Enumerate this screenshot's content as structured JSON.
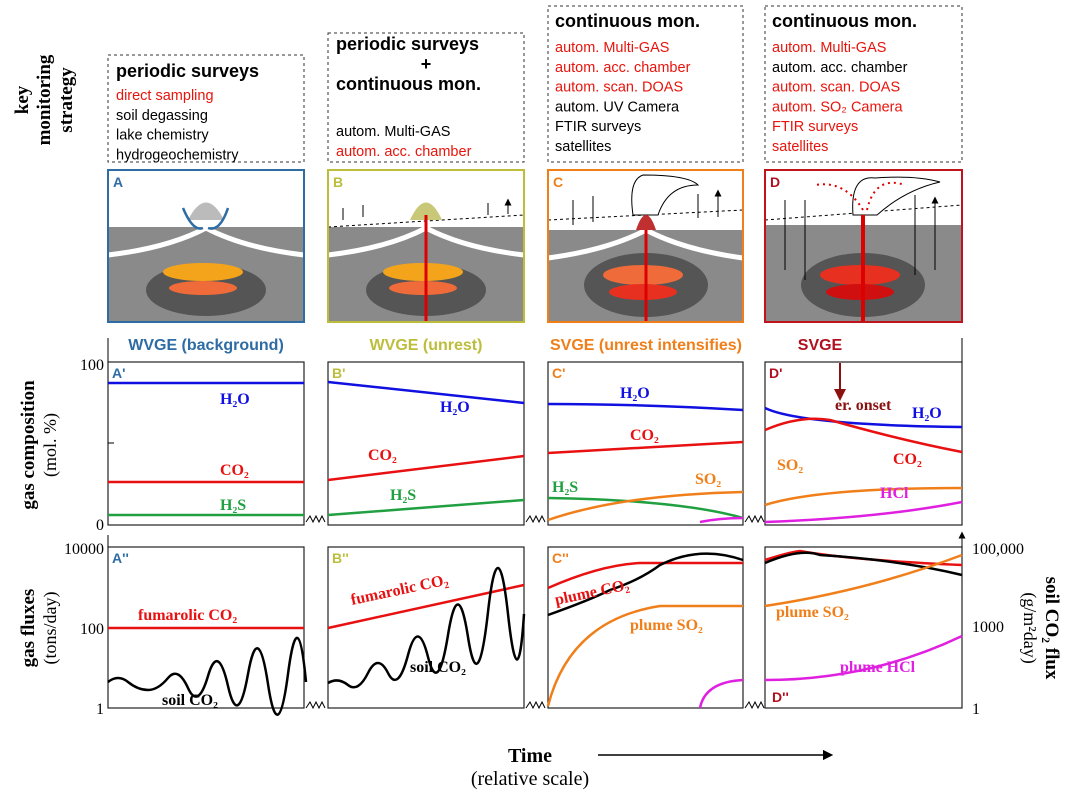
{
  "y_labels": {
    "strategy": [
      "key",
      "monitoring",
      "strategy"
    ],
    "composition": "gas composition",
    "composition_unit": "(mol. %)",
    "fluxes": "gas fluxes",
    "fluxes_unit": "(tons/day)",
    "soil_flux": "soil CO₂ flux",
    "soil_flux_unit": "(g/m²day)"
  },
  "x_label": {
    "title": "Time",
    "subtitle": "(relative scale)"
  },
  "composition_ticks": [
    "100",
    "0"
  ],
  "flux_ticks": [
    "10000",
    "100",
    "1"
  ],
  "soil_flux_ticks": [
    "100,000",
    "1000",
    "1"
  ],
  "annotation": "er. onset",
  "columns": [
    {
      "color": "#2e6ca4",
      "heading": "WVGE (background)",
      "panel": "A",
      "composition_panel": "A'",
      "flux_panel": "A''",
      "strategy_title": [
        "periodic surveys"
      ],
      "methods": [
        {
          "text": "direct sampling",
          "color": "#e8140c"
        },
        {
          "text": "soil degassing",
          "color": "#000000"
        },
        {
          "text": "lake chemistry",
          "color": "#000000"
        },
        {
          "text": "hydrogeochemistry",
          "color": "#000000"
        }
      ],
      "composition_labels": [
        "H₂O",
        "CO₂",
        "H₂S"
      ],
      "flux_labels": [
        "fumarolic CO₂",
        "soil CO₂"
      ]
    },
    {
      "color": "#bdbd3c",
      "heading": "WVGE (unrest)",
      "panel": "B",
      "composition_panel": "B'",
      "flux_panel": "B''",
      "strategy_title": [
        "periodic surveys",
        "+",
        "continuous mon."
      ],
      "methods": [
        {
          "text": "autom. Multi-GAS",
          "color": "#000000"
        },
        {
          "text": "autom. acc. chamber",
          "color": "#e8140c"
        }
      ],
      "composition_labels": [
        "H₂O",
        "CO₂",
        "H₂S"
      ],
      "flux_labels": [
        "fumarolic CO₂",
        "soil CO₂"
      ]
    },
    {
      "color": "#f07f1a",
      "heading": "SVGE (unrest intensifies)",
      "panel": "C",
      "composition_panel": "C'",
      "flux_panel": "C''",
      "strategy_title": [
        "continuous mon."
      ],
      "methods": [
        {
          "text": "autom. Multi-GAS",
          "color": "#e8140c"
        },
        {
          "text": "autom. acc. chamber",
          "color": "#e8140c"
        },
        {
          "text": "autom. scan. DOAS",
          "color": "#e8140c"
        },
        {
          "text": "autom. UV Camera",
          "color": "#000000"
        },
        {
          "text": "FTIR surveys",
          "color": "#000000"
        },
        {
          "text": "satellites",
          "color": "#000000"
        }
      ],
      "composition_labels": [
        "H₂O",
        "CO₂",
        "SO₂",
        "H₂S"
      ],
      "flux_labels": [
        "plume CO₂",
        "plume SO₂"
      ]
    },
    {
      "color": "#b01020",
      "heading": "SVGE",
      "panel": "D",
      "composition_panel": "D'",
      "flux_panel": "D''",
      "strategy_title": [
        "continuous mon."
      ],
      "methods": [
        {
          "text": "autom. Multi-GAS",
          "color": "#e8140c"
        },
        {
          "text": "autom. acc. chamber",
          "color": "#000000"
        },
        {
          "text": "autom. scan. DOAS",
          "color": "#e8140c"
        },
        {
          "text": "autom. SO₂ Camera",
          "color": "#e8140c"
        },
        {
          "text": "FTIR surveys",
          "color": "#e8140c"
        },
        {
          "text": "satellites",
          "color": "#e8140c"
        }
      ],
      "composition_labels": [
        "H₂O",
        "CO₂",
        "SO₂",
        "HCl"
      ],
      "flux_labels": [
        "plume SO₂",
        "plume HCl"
      ]
    }
  ]
}
